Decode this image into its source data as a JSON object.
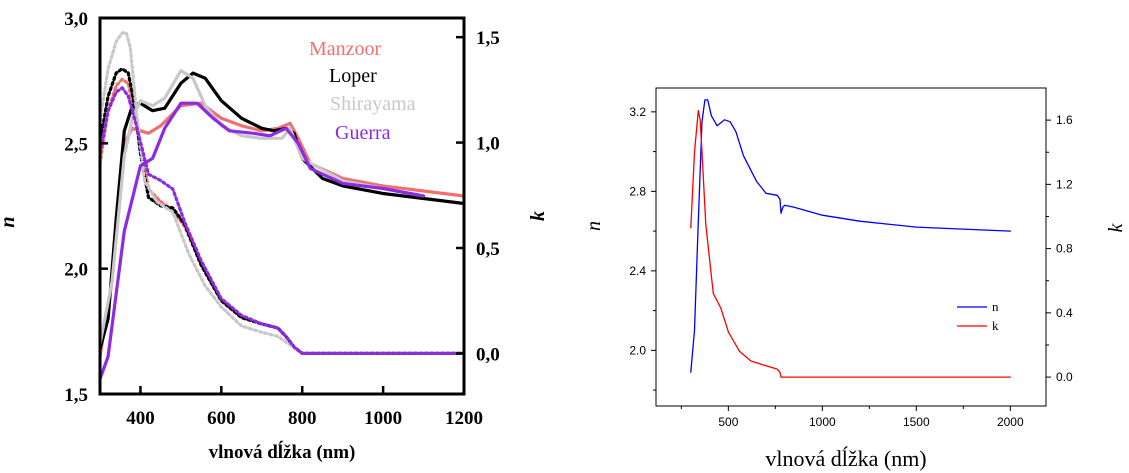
{
  "chart_data": [
    {
      "type": "line",
      "xlabel": "vlnová dĺžka (nm)",
      "ylabel": "n",
      "y2label": "k",
      "xlim": [
        300,
        1200
      ],
      "ylim": [
        1.5,
        3.0
      ],
      "y2lim": [
        -0.1925,
        1.5909
      ],
      "x_ticks": [
        "400",
        "600",
        "800",
        "1000",
        "1200"
      ],
      "x_tick_values": [
        400,
        600,
        800,
        1000,
        1200
      ],
      "y_ticks": [
        "1,5",
        "2,0",
        "2,5",
        "3,0"
      ],
      "y_tick_values": [
        1.5,
        2.0,
        2.5,
        3.0
      ],
      "y2_ticks": [
        "0,0",
        "0,5",
        "1,0",
        "1,5"
      ],
      "y2_tick_values": [
        0.0,
        0.5,
        1.0,
        1.5
      ],
      "grid": false,
      "legend_position": "top-right",
      "series": [
        {
          "name": "Manzoor",
          "color": "#f07070",
          "axis": "n",
          "style": "solid",
          "x": [
            300,
            330,
            360,
            380,
            420,
            450,
            500,
            550,
            600,
            650,
            700,
            740,
            770,
            790,
            820,
            900,
            1000,
            1100,
            1200
          ],
          "y": [
            1.65,
            1.95,
            2.5,
            2.56,
            2.54,
            2.57,
            2.65,
            2.66,
            2.6,
            2.57,
            2.55,
            2.56,
            2.58,
            2.52,
            2.42,
            2.36,
            2.33,
            2.31,
            2.29
          ]
        },
        {
          "name": "Manzoor",
          "color": "#f07070",
          "axis": "k",
          "style": "dotted",
          "x": [
            300,
            320,
            340,
            355,
            370,
            390,
            420,
            450,
            480,
            510,
            550,
            600,
            650,
            700,
            740,
            760,
            780,
            800,
            900,
            1000,
            1100,
            1200
          ],
          "y": [
            0.9,
            1.15,
            1.27,
            1.3,
            1.28,
            1.1,
            0.78,
            0.72,
            0.68,
            0.6,
            0.42,
            0.25,
            0.17,
            0.14,
            0.12,
            0.08,
            0.03,
            0.0,
            0.0,
            0.0,
            0.0,
            0.0
          ]
        },
        {
          "name": "Loper",
          "color": "#000000",
          "axis": "n",
          "style": "solid",
          "x": [
            300,
            320,
            340,
            360,
            380,
            400,
            430,
            460,
            500,
            530,
            560,
            600,
            650,
            700,
            730,
            760,
            780,
            800,
            850,
            900,
            1000,
            1100,
            1200
          ],
          "y": [
            1.68,
            1.8,
            2.2,
            2.55,
            2.65,
            2.66,
            2.63,
            2.64,
            2.74,
            2.78,
            2.76,
            2.67,
            2.6,
            2.56,
            2.55,
            2.56,
            2.54,
            2.44,
            2.36,
            2.33,
            2.3,
            2.28,
            2.26
          ]
        },
        {
          "name": "Loper",
          "color": "#000000",
          "axis": "k",
          "style": "dotted",
          "x": [
            300,
            320,
            340,
            355,
            370,
            385,
            400,
            420,
            450,
            480,
            510,
            550,
            600,
            650,
            700,
            740,
            760,
            780,
            800,
            900,
            1000,
            1100,
            1200
          ],
          "y": [
            1.0,
            1.22,
            1.33,
            1.35,
            1.33,
            1.18,
            0.95,
            0.74,
            0.7,
            0.69,
            0.61,
            0.42,
            0.25,
            0.17,
            0.14,
            0.12,
            0.08,
            0.03,
            0.0,
            0.0,
            0.0,
            0.0,
            0.0
          ]
        },
        {
          "name": "Shirayama",
          "color": "#c8c8c8",
          "axis": "n",
          "style": "solid",
          "x": [
            300,
            330,
            360,
            380,
            400,
            430,
            460,
            500,
            530,
            560,
            600,
            650,
            700,
            750,
            770,
            800,
            900,
            1000,
            1100
          ],
          "y": [
            1.7,
            1.95,
            2.45,
            2.6,
            2.67,
            2.65,
            2.68,
            2.79,
            2.76,
            2.65,
            2.57,
            2.53,
            2.52,
            2.52,
            2.56,
            2.44,
            2.35,
            2.32,
            2.29
          ]
        },
        {
          "name": "Shirayama",
          "color": "#c8c8c8",
          "axis": "k",
          "style": "dotted",
          "x": [
            300,
            320,
            340,
            355,
            365,
            375,
            390,
            410,
            440,
            480,
            520,
            560,
            600,
            650,
            700,
            740,
            770,
            800,
            900,
            1000,
            1100,
            1200
          ],
          "y": [
            1.1,
            1.35,
            1.48,
            1.52,
            1.52,
            1.45,
            1.15,
            0.82,
            0.72,
            0.67,
            0.47,
            0.32,
            0.22,
            0.13,
            0.1,
            0.08,
            0.04,
            0.0,
            0.0,
            0.0,
            0.0,
            0.0
          ]
        },
        {
          "name": "Guerra",
          "color": "#8c2be2",
          "axis": "n",
          "style": "solid",
          "x": [
            300,
            320,
            340,
            360,
            380,
            400,
            430,
            460,
            500,
            540,
            580,
            620,
            680,
            720,
            760,
            790,
            820,
            900,
            1000,
            1100
          ],
          "y": [
            1.56,
            1.65,
            1.9,
            2.15,
            2.28,
            2.41,
            2.44,
            2.56,
            2.66,
            2.66,
            2.6,
            2.55,
            2.54,
            2.53,
            2.56,
            2.5,
            2.4,
            2.34,
            2.32,
            2.29
          ]
        },
        {
          "name": "Guerra",
          "color": "#8c2be2",
          "axis": "k",
          "style": "dotted",
          "x": [
            300,
            320,
            340,
            355,
            370,
            390,
            420,
            450,
            480,
            510,
            550,
            600,
            650,
            700,
            740,
            760,
            780,
            800,
            900,
            1000,
            1100,
            1200
          ],
          "y": [
            0.95,
            1.15,
            1.24,
            1.26,
            1.22,
            1.08,
            0.85,
            0.82,
            0.78,
            0.62,
            0.44,
            0.26,
            0.18,
            0.14,
            0.12,
            0.08,
            0.03,
            0.0,
            0.0,
            0.0,
            0.0,
            0.0
          ]
        }
      ]
    },
    {
      "type": "line",
      "xlabel": "vlnová dĺžka (nm)",
      "ylabel": "n",
      "y2label": "k",
      "xlim": [
        115,
        2190
      ],
      "ylim": [
        1.72,
        3.32
      ],
      "y2lim": [
        -0.18,
        1.8
      ],
      "x_ticks": [
        "500",
        "1000",
        "1500",
        "2000"
      ],
      "x_tick_values": [
        500,
        1000,
        1500,
        2000
      ],
      "y_ticks": [
        "2.0",
        "2.4",
        "2.8",
        "3.2"
      ],
      "y_tick_values": [
        2.0,
        2.4,
        2.8,
        3.2
      ],
      "y2_ticks": [
        "0.0",
        "0.4",
        "0.8",
        "1.2",
        "1.6"
      ],
      "y2_tick_values": [
        0.0,
        0.4,
        0.8,
        1.2,
        1.6
      ],
      "grid": false,
      "legend_position": "bottom-right",
      "series": [
        {
          "name": "n",
          "color": "#0000ff",
          "axis": "n",
          "x": [
            300,
            320,
            340,
            360,
            375,
            390,
            410,
            440,
            480,
            510,
            540,
            580,
            650,
            700,
            760,
            775,
            780,
            790,
            800,
            850,
            1000,
            1200,
            1500,
            2000
          ],
          "y": [
            1.89,
            2.1,
            2.65,
            3.15,
            3.26,
            3.26,
            3.18,
            3.13,
            3.16,
            3.15,
            3.1,
            2.98,
            2.85,
            2.79,
            2.78,
            2.76,
            2.69,
            2.72,
            2.73,
            2.72,
            2.68,
            2.65,
            2.62,
            2.6
          ]
        },
        {
          "name": "k",
          "color": "#ff0000",
          "axis": "k",
          "x": [
            300,
            320,
            340,
            350,
            360,
            380,
            420,
            460,
            500,
            560,
            620,
            700,
            760,
            775,
            780,
            800,
            1000,
            1500,
            2000
          ],
          "y": [
            0.93,
            1.4,
            1.66,
            1.6,
            1.4,
            0.95,
            0.52,
            0.43,
            0.28,
            0.16,
            0.1,
            0.07,
            0.05,
            0.03,
            0.0,
            0.0,
            0.0,
            0.0,
            0.0
          ]
        }
      ]
    }
  ]
}
